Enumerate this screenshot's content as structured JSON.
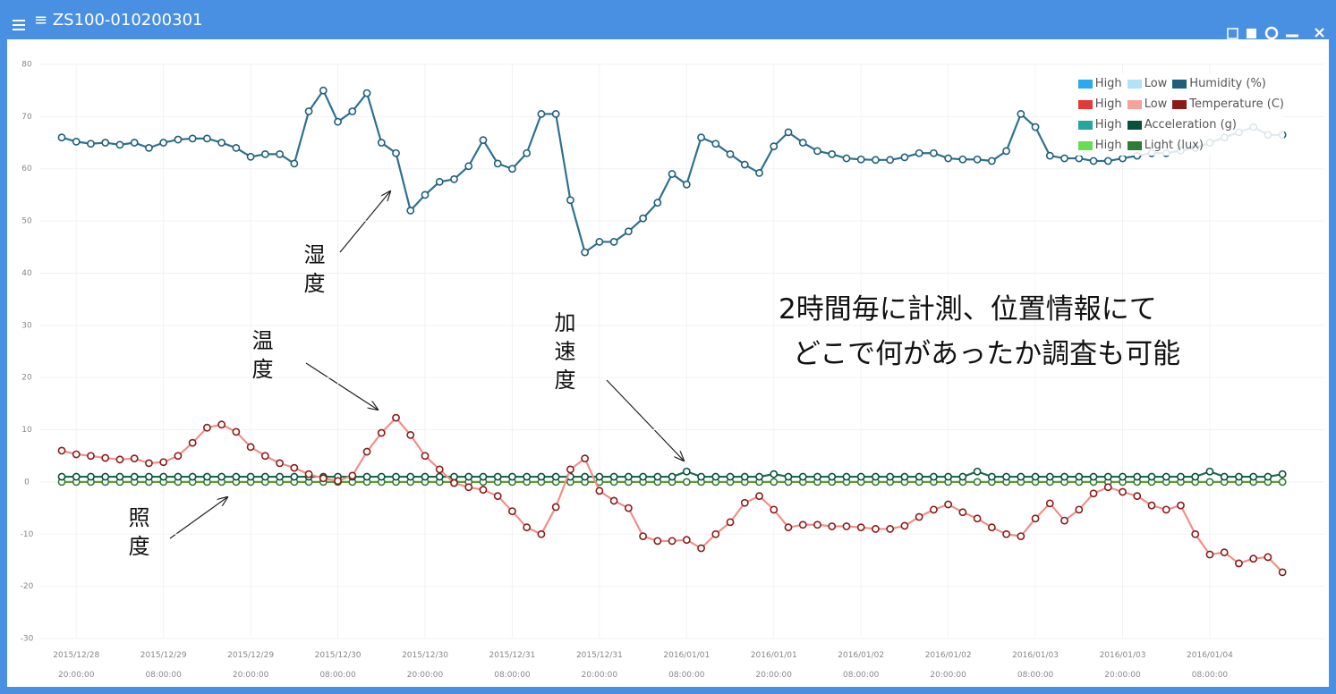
{
  "window": {
    "title": "ZS100-010200301"
  },
  "chart_data": {
    "type": "line",
    "categories": [
      null,
      "2015/12/28 20:00:00",
      null,
      null,
      null,
      null,
      null,
      "2015/12/29 08:00:00",
      null,
      null,
      null,
      null,
      null,
      "2015/12/29 20:00:00",
      null,
      null,
      null,
      null,
      null,
      "2015/12/30 08:00:00",
      null,
      null,
      null,
      null,
      null,
      "2015/12/30 20:00:00",
      null,
      null,
      null,
      null,
      null,
      "2015/12/31 08:00:00",
      null,
      null,
      null,
      null,
      null,
      "2015/12/31 20:00:00",
      null,
      null,
      null,
      null,
      null,
      "2016/01/01 08:00:00",
      null,
      null,
      null,
      null,
      null,
      "2016/01/01 20:00:00",
      null,
      null,
      null,
      null,
      null,
      "2016/01/02 08:00:00",
      null,
      null,
      null,
      null,
      null,
      "2016/01/02 20:00:00",
      null,
      null,
      null,
      null,
      null,
      "2016/01/03 08:00:00",
      null,
      null,
      null,
      null,
      null,
      "2016/01/03 20:00:00",
      null,
      null,
      null,
      null,
      null,
      "2016/01/04 08:00:00",
      null,
      null,
      null,
      null,
      null
    ],
    "series": [
      {
        "name": "Light (lux)",
        "color": "#2e7d32",
        "line_color": "#5c9e3a",
        "bands": [
          {
            "label": "High",
            "color": "#66dd55"
          }
        ],
        "values": [
          0,
          0,
          0,
          0,
          0,
          0,
          0,
          0,
          0,
          0,
          0,
          0,
          0,
          0,
          0,
          0,
          0,
          0,
          0,
          0,
          0,
          0,
          0,
          0,
          0,
          0,
          0,
          0,
          0,
          0,
          0,
          0,
          0,
          0,
          0,
          0,
          0,
          0,
          0,
          0,
          0,
          0,
          0,
          0,
          0,
          0,
          0,
          0,
          0,
          0,
          0,
          0,
          0,
          0,
          0,
          0,
          0,
          0,
          0,
          0,
          0,
          0,
          0,
          0,
          0,
          0,
          0,
          0,
          0,
          0,
          0,
          0,
          0,
          0,
          0,
          0,
          0,
          0,
          0,
          0,
          0,
          0,
          0,
          0,
          0
        ]
      },
      {
        "name": "Acceleration (g)",
        "color": "#0b4f3c",
        "line_color": "#1f6b45",
        "bands": [
          {
            "label": "High",
            "color": "#26a69a"
          }
        ],
        "values": [
          1,
          1,
          1,
          1,
          1,
          1,
          1,
          1,
          1,
          1,
          1,
          1,
          1,
          1,
          1,
          1,
          1,
          1,
          1,
          1,
          1,
          1,
          1,
          1,
          1,
          1,
          1,
          1,
          1,
          1,
          1,
          1,
          1,
          1,
          1,
          1,
          1,
          1,
          1,
          1,
          1,
          1,
          1,
          2,
          1,
          1,
          1,
          1,
          1,
          1.5,
          1,
          1,
          1,
          1,
          1,
          1,
          1,
          1,
          1,
          1,
          1,
          1,
          1,
          2,
          1,
          1,
          1,
          1,
          1,
          1,
          1,
          1,
          1,
          1,
          1,
          1,
          1,
          1,
          1,
          2,
          1,
          1,
          1,
          1,
          1.5
        ]
      },
      {
        "name": "Temperature (C)",
        "color": "#8b1a1a",
        "line_color": "#f09088",
        "bands": [
          {
            "label": "High",
            "color": "#e53935"
          },
          {
            "label": "Low",
            "color": "#f4a39b"
          }
        ],
        "values": [
          6,
          5.3,
          5,
          4.6,
          4.3,
          4.5,
          3.6,
          3.8,
          5,
          7.5,
          10.4,
          11,
          9.6,
          6.7,
          5,
          3.6,
          2.7,
          1.5,
          0.7,
          0.2,
          1.2,
          5.8,
          9.4,
          12.3,
          9,
          5,
          2.4,
          -0.2,
          -1,
          -1.5,
          -2.7,
          -5.6,
          -8.7,
          -10,
          -4.8,
          2.4,
          4.5,
          -1.7,
          -3.6,
          -5,
          -10.4,
          -11.3,
          -11.3,
          -11.1,
          -12.7,
          -10,
          -7.7,
          -4,
          -2.7,
          -5.3,
          -8.7,
          -8.2,
          -8.2,
          -8.5,
          -8.5,
          -8.7,
          -9,
          -9,
          -8.4,
          -6.7,
          -5.3,
          -4.3,
          -5.8,
          -7,
          -8.7,
          -10,
          -10.4,
          -7,
          -4.1,
          -7.4,
          -5.3,
          -2.2,
          -1,
          -1.9,
          -2.7,
          -4.5,
          -5.3,
          -4.5,
          -10,
          -13.9,
          -13.5,
          -15.6,
          -14.7,
          -14.4,
          -17.3
        ]
      },
      {
        "name": "Humidity (%)",
        "color": "#1f5f7a",
        "line_color": "#2f7090",
        "bands": [
          {
            "label": "High",
            "color": "#29a9f0"
          },
          {
            "label": "Low",
            "color": "#b3e0fb"
          }
        ],
        "values": [
          66,
          65.2,
          64.8,
          65,
          64.6,
          65,
          64,
          65,
          65.6,
          65.8,
          65.8,
          65,
          64,
          62.3,
          62.8,
          62.8,
          61,
          71,
          75,
          69,
          71,
          74.5,
          65,
          63,
          52,
          55,
          57.5,
          58,
          60.5,
          65.5,
          61,
          60,
          63,
          70.5,
          70.5,
          54,
          44,
          46,
          46,
          48,
          50.5,
          53.5,
          59,
          57,
          66,
          64.8,
          62.8,
          60.8,
          59.2,
          64.3,
          67,
          65,
          63.4,
          62.8,
          62,
          61.8,
          61.7,
          61.7,
          62.2,
          63,
          63,
          62,
          61.8,
          61.8,
          61.5,
          63.4,
          70.5,
          68,
          62.5,
          62,
          62,
          61.5,
          61.5,
          62,
          62.5,
          63,
          63,
          63.5,
          64,
          65,
          66,
          67,
          68,
          66.5,
          66.5
        ]
      }
    ],
    "ylim": [
      -30,
      80
    ],
    "yticks": [
      -30,
      -20,
      -10,
      0,
      10,
      20,
      30,
      40,
      50,
      60,
      70,
      80
    ],
    "grid": true,
    "legend": "upper right",
    "annotations": [
      "湿度",
      "温度",
      "加速度",
      "照度",
      "2時間毎に計測、位置情報にて",
      "どこで何があったか調査も可能"
    ]
  }
}
